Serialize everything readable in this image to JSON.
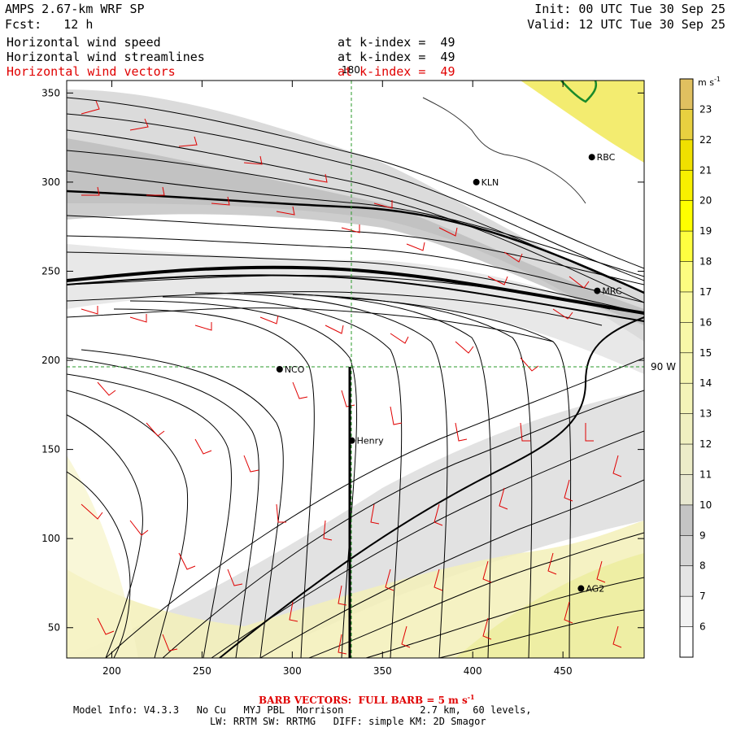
{
  "header": {
    "model_title": "AMPS 2.67-km WRF SP",
    "forecast": "Fcst:   12 h",
    "init": "Init: 00 UTC Tue 30 Sep 25",
    "valid": "Valid: 12 UTC Tue 30 Sep 25",
    "fields": [
      {
        "name": "Horizontal wind speed",
        "level": "at k-index =  49",
        "color": "#000000"
      },
      {
        "name": "Horizontal wind streamlines",
        "level": "at k-index =  49",
        "color": "#000000"
      },
      {
        "name": "Horizontal wind vectors",
        "level": "at k-index =  49",
        "color": "#e00000"
      }
    ]
  },
  "axes": {
    "x_ticks": [
      200,
      250,
      300,
      350,
      400,
      450
    ],
    "y_ticks": [
      50,
      100,
      150,
      200,
      250,
      300,
      350
    ],
    "xlim": [
      175,
      495
    ],
    "ylim": [
      33,
      357
    ],
    "meridian_label": "180",
    "latitude_label": "90 W"
  },
  "stations": [
    {
      "name": "KLN",
      "x": 402,
      "y": 300
    },
    {
      "name": "RBC",
      "x": 466,
      "y": 314
    },
    {
      "name": "MRC",
      "x": 469,
      "y": 239
    },
    {
      "name": "NCO",
      "x": 293,
      "y": 195
    },
    {
      "name": "Henry",
      "x": 333,
      "y": 155
    },
    {
      "name": "AG2",
      "x": 460,
      "y": 72
    }
  ],
  "colorbar": {
    "unit": "m s",
    "unit_exp": "-1",
    "levels": [
      6,
      7,
      8,
      9,
      10,
      11,
      12,
      13,
      14,
      15,
      16,
      17,
      18,
      19,
      20,
      21,
      22,
      23
    ],
    "colors": [
      "#ffffff",
      "#f2f2f2",
      "#e4e4e4",
      "#d4d4d4",
      "#c4c4c4",
      "#e8e8d0",
      "#ececc8",
      "#f0f0c0",
      "#f4f4b8",
      "#f6f6b0",
      "#f8f8a8",
      "#fafaa0",
      "#fcfc80",
      "#ffff40",
      "#ffff00",
      "#f8f000",
      "#f0e000",
      "#e8d040",
      "#e0c060"
    ]
  },
  "footer": {
    "barb": "BARB VECTORS:  FULL BARB = 5 m s",
    "barb_exp": "-1",
    "line1": "Model Info: V4.3.3   No Cu   MYJ PBL  Morrison             2.7 km,  60 levels,",
    "line2": "LW: RRTM SW: RRTMG   DIFF: simple KM: 2D Smagor"
  }
}
